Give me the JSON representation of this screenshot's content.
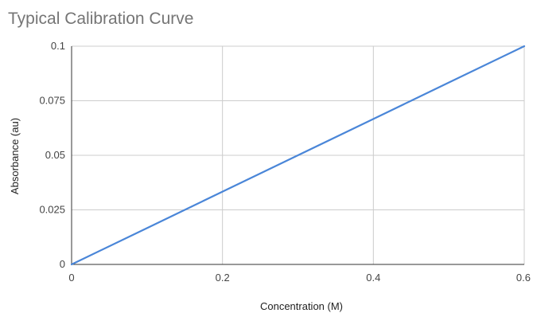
{
  "chart_data": {
    "type": "line",
    "title": "Typical Calibration Curve",
    "xlabel": "Concentration (M)",
    "ylabel": "Absorbance (au)",
    "xlim": [
      0,
      0.6
    ],
    "ylim": [
      0,
      0.1
    ],
    "x_ticks": [
      0,
      0.2,
      0.4,
      0.6
    ],
    "x_tick_labels": [
      "0",
      "0.2",
      "0.4",
      "0.6"
    ],
    "y_ticks": [
      0,
      0.025,
      0.05,
      0.075,
      0.1
    ],
    "y_tick_labels": [
      "0",
      "0.025",
      "0.05",
      "0.075",
      "0.1"
    ],
    "grid": true,
    "legend": "none",
    "series": [
      {
        "color": "#4a86d8",
        "x": [
          0,
          0.1,
          0.2,
          0.3,
          0.4,
          0.5,
          0.6
        ],
        "y": [
          0,
          0.01667,
          0.03333,
          0.05,
          0.06667,
          0.08333,
          0.1
        ]
      }
    ]
  }
}
